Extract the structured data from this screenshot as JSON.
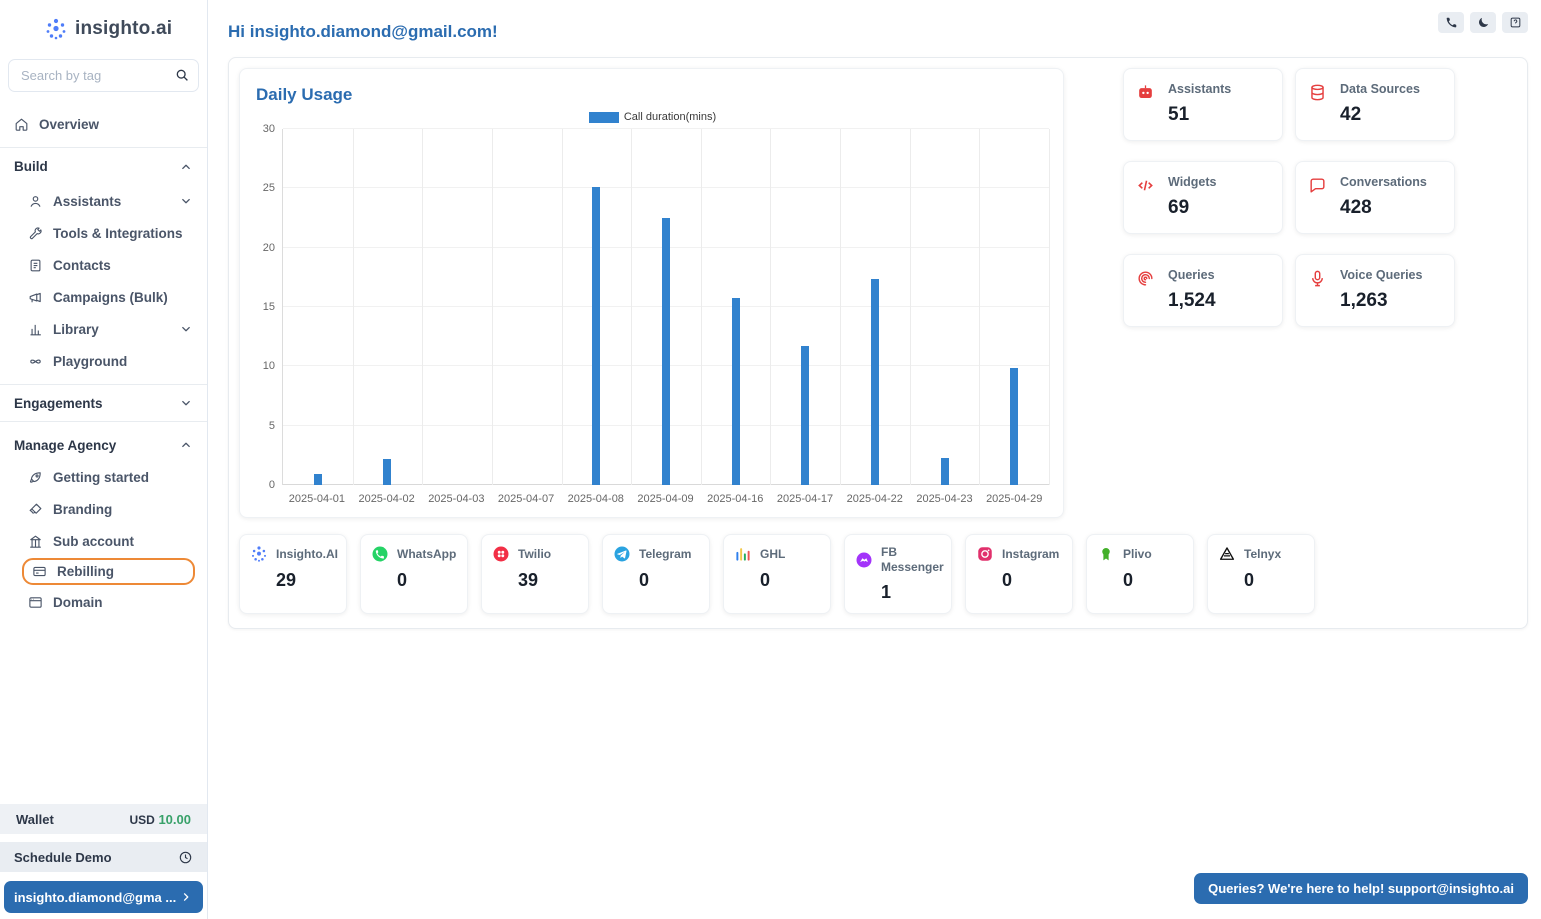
{
  "colors": {
    "accent_blue": "#2b6cb0",
    "bar_blue": "#3182ce",
    "selected_orange": "#ED8936",
    "positive_green": "#38A169",
    "stat_red": "#E53E3E"
  },
  "app": {
    "logo_text": "insighto.ai",
    "greeting": "Hi insighto.diamond@gmail.com!",
    "header_actions": [
      {
        "name": "phone-button",
        "icon": "phone-icon"
      },
      {
        "name": "dark-mode-button",
        "icon": "moon-icon"
      },
      {
        "name": "help-button",
        "icon": "help-icon"
      }
    ]
  },
  "sidebar": {
    "search_placeholder": "Search by tag",
    "nav": [
      {
        "type": "item",
        "label": "Overview",
        "icon": "home-icon"
      },
      {
        "type": "section",
        "label": "Build",
        "chevron": "up",
        "divider_top": true
      },
      {
        "type": "sub",
        "label": "Assistants",
        "icon": "user-icon",
        "chevron": "down"
      },
      {
        "type": "sub",
        "label": "Tools & Integrations",
        "icon": "tools-icon"
      },
      {
        "type": "sub",
        "label": "Contacts",
        "icon": "contacts-icon"
      },
      {
        "type": "sub",
        "label": "Campaigns (Bulk)",
        "icon": "megaphone-icon"
      },
      {
        "type": "sub",
        "label": "Library",
        "icon": "bar-chart-icon",
        "chevron": "down"
      },
      {
        "type": "sub",
        "label": "Playground",
        "icon": "infinity-icon"
      },
      {
        "type": "section",
        "label": "Engagements",
        "chevron": "down",
        "divider_top": true,
        "divider_bottom": true
      },
      {
        "type": "section",
        "label": "Manage Agency",
        "chevron": "up"
      },
      {
        "type": "sub",
        "label": "Getting started",
        "icon": "rocket-icon"
      },
      {
        "type": "sub",
        "label": "Branding",
        "icon": "brush-icon"
      },
      {
        "type": "sub",
        "label": "Sub account",
        "icon": "building-icon"
      },
      {
        "type": "sub",
        "label": "Rebilling",
        "icon": "card-icon",
        "selected": true
      },
      {
        "type": "sub",
        "label": "Domain",
        "icon": "domain-icon"
      }
    ],
    "wallet": {
      "label": "Wallet",
      "currency": "USD",
      "amount": "10.00"
    },
    "schedule_demo": {
      "label": "Schedule Demo"
    },
    "account": {
      "label": "insighto.diamond@gma ..."
    }
  },
  "chart_data": {
    "type": "bar",
    "title": "Daily Usage",
    "legend": [
      "Call duration(mins)"
    ],
    "legend_position": "top",
    "grid": true,
    "categories": [
      "2025-04-01",
      "2025-04-02",
      "2025-04-03",
      "2025-04-07",
      "2025-04-08",
      "2025-04-09",
      "2025-04-16",
      "2025-04-17",
      "2025-04-22",
      "2025-04-23",
      "2025-04-29"
    ],
    "values": [
      0.9,
      2.2,
      0,
      0,
      25.1,
      22.5,
      15.8,
      11.7,
      17.4,
      2.3,
      9.9
    ],
    "xlabel": "",
    "ylabel": "",
    "ylim": [
      0,
      30
    ],
    "yticks": [
      0,
      5,
      10,
      15,
      20,
      25,
      30
    ],
    "bar_color": "#3182ce"
  },
  "stats": [
    {
      "label": "Assistants",
      "value": "51",
      "icon": "assistants-icon"
    },
    {
      "label": "Data Sources",
      "value": "42",
      "icon": "database-icon"
    },
    {
      "label": "Widgets",
      "value": "69",
      "icon": "code-icon"
    },
    {
      "label": "Conversations",
      "value": "428",
      "icon": "chat-icon"
    },
    {
      "label": "Queries",
      "value": "1,524",
      "icon": "queries-icon"
    },
    {
      "label": "Voice Queries",
      "value": "1,263",
      "icon": "mic-icon"
    }
  ],
  "channels": [
    {
      "label": "Insighto.AI",
      "value": "29",
      "icon": "insighto-icon"
    },
    {
      "label": "WhatsApp",
      "value": "0",
      "icon": "whatsapp-icon"
    },
    {
      "label": "Twilio",
      "value": "39",
      "icon": "twilio-icon"
    },
    {
      "label": "Telegram",
      "value": "0",
      "icon": "telegram-icon"
    },
    {
      "label": "GHL",
      "value": "0",
      "icon": "ghl-icon"
    },
    {
      "label": "FB Messenger",
      "value": "1",
      "icon": "messenger-icon"
    },
    {
      "label": "Instagram",
      "value": "0",
      "icon": "instagram-icon"
    },
    {
      "label": "Plivo",
      "value": "0",
      "icon": "plivo-icon"
    },
    {
      "label": "Telnyx",
      "value": "0",
      "icon": "telnyx-icon"
    }
  ],
  "support": {
    "label": "Queries? We're here to help! support@insighto.ai"
  }
}
